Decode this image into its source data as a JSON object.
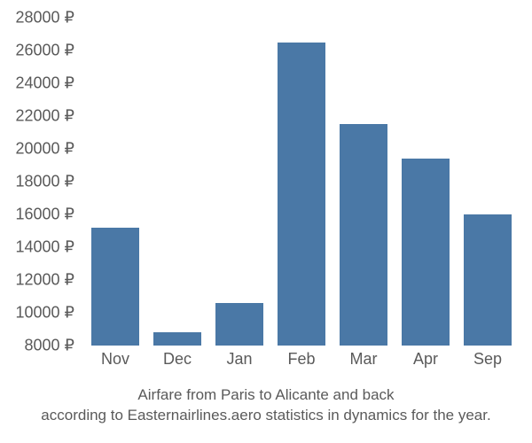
{
  "chart": {
    "type": "bar",
    "categories": [
      "Nov",
      "Dec",
      "Jan",
      "Feb",
      "Mar",
      "Apr",
      "Sep"
    ],
    "values": [
      15200,
      8800,
      10600,
      26500,
      21500,
      19400,
      16000
    ],
    "bar_color": "#4a78a6",
    "y_ticks": [
      8000,
      10000,
      12000,
      14000,
      16000,
      18000,
      20000,
      22000,
      24000,
      26000,
      28000
    ],
    "y_tick_labels": [
      "8000 ₽",
      "10000 ₽",
      "12000 ₽",
      "14000 ₽",
      "16000 ₽",
      "18000 ₽",
      "20000 ₽",
      "22000 ₽",
      "24000 ₽",
      "26000 ₽",
      "28000 ₽"
    ],
    "y_min": 8000,
    "y_max": 28000,
    "axis_text_color": "#5a5a5a",
    "axis_fontsize": 18,
    "background_color": "#ffffff",
    "caption_line1": "Airfare from Paris to Alicante and back",
    "caption_line2": "according to Easternairlines.aero statistics in dynamics for the year.",
    "caption_fontsize": 17,
    "caption_color": "#5a5a5a"
  }
}
